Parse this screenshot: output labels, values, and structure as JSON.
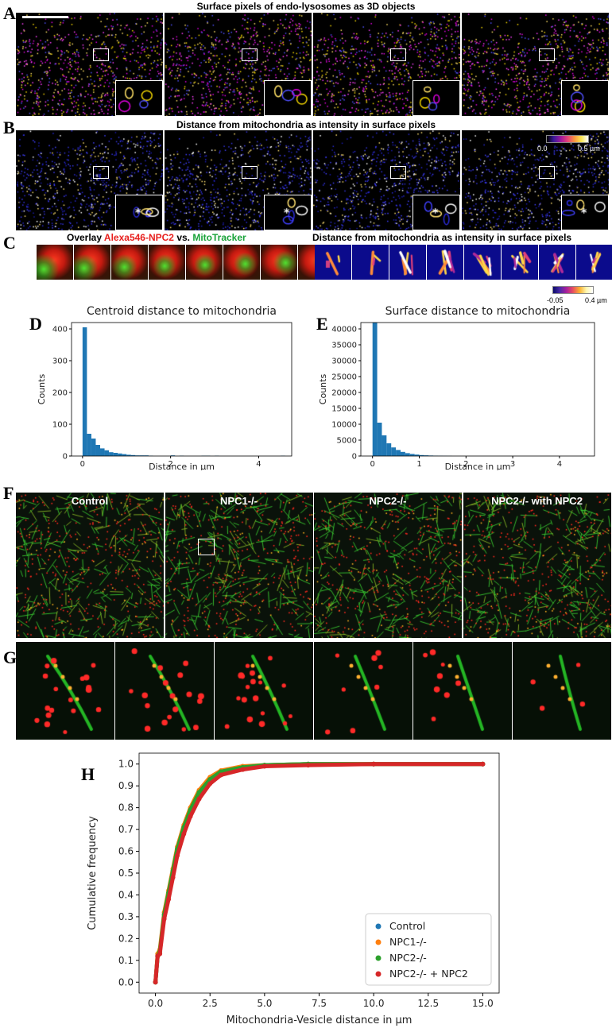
{
  "panel_A": {
    "label": "A",
    "title": "Surface pixels of endo-lysosomes as 3D objects"
  },
  "panel_B": {
    "label": "B",
    "title": "Distance from mitochondria as intensity in surface pixels",
    "colorbar": {
      "min_label": "0.0",
      "max_label": "0.5 µm"
    }
  },
  "panel_C": {
    "label": "C",
    "overlay_prefix": "Overlay ",
    "overlay_red": "Alexa546-NPC2",
    "overlay_vs": " vs. ",
    "overlay_green": "MitoTracker",
    "right_title": "Distance from mitochondria as intensity in surface pixels",
    "colorbar": {
      "min_label": "-0.05",
      "max_label": "0.4 µm"
    }
  },
  "panel_F": {
    "label": "F",
    "images": [
      "Control",
      "NPC1-/-",
      "NPC2-/-",
      "NPC2-/- with NPC2"
    ]
  },
  "panel_G": {
    "label": "G"
  },
  "chart_data": [
    {
      "panel": "D",
      "type": "bar",
      "title": "Centroid distance to mitochondria",
      "xlabel": "Distance in µm",
      "ylabel": "Counts",
      "xlim": [
        -0.25,
        4.75
      ],
      "ylim": [
        0,
        420
      ],
      "xticks": [
        0,
        2,
        4
      ],
      "yticks": [
        0,
        100,
        200,
        300,
        400
      ],
      "bin_width": 0.1,
      "bin_starts": [
        0.0,
        0.1,
        0.2,
        0.3,
        0.4,
        0.5,
        0.6,
        0.7,
        0.8,
        0.9,
        1.0,
        1.1,
        1.2,
        1.3,
        1.4,
        1.5,
        2.0,
        2.2,
        2.7,
        2.8,
        3.0,
        4.5
      ],
      "values": [
        405,
        70,
        55,
        35,
        24,
        18,
        12,
        10,
        8,
        6,
        4,
        3,
        2,
        2,
        2,
        1,
        2,
        1,
        1,
        1,
        1,
        1
      ],
      "color": "#1f77b4"
    },
    {
      "panel": "E",
      "type": "bar",
      "title": "Surface distance to mitochondria",
      "xlabel": "Distance in µm",
      "ylabel": "Counts",
      "xlim": [
        -0.25,
        4.75
      ],
      "ylim": [
        0,
        42000
      ],
      "xticks": [
        0,
        1,
        2,
        3,
        4
      ],
      "yticks": [
        0,
        5000,
        10000,
        15000,
        20000,
        25000,
        30000,
        35000,
        40000
      ],
      "bin_width": 0.1,
      "bin_starts": [
        0.0,
        0.1,
        0.2,
        0.3,
        0.4,
        0.5,
        0.6,
        0.7,
        0.8,
        0.9,
        1.0,
        1.1,
        1.2,
        1.3,
        1.4,
        1.5,
        1.6
      ],
      "values": [
        42000,
        10500,
        6500,
        4000,
        2700,
        1900,
        1300,
        900,
        650,
        450,
        300,
        220,
        160,
        120,
        90,
        60,
        40
      ],
      "color": "#1f77b4"
    },
    {
      "panel": "H",
      "type": "scatter",
      "title": "",
      "xlabel": "Mitochondria-Vesicle distance in µm",
      "ylabel": "Cumulative frequency",
      "xlim": [
        -0.75,
        15.75
      ],
      "ylim": [
        -0.05,
        1.05
      ],
      "xticks": [
        0.0,
        2.5,
        5.0,
        7.5,
        10.0,
        12.5,
        15.0
      ],
      "yticks": [
        0.0,
        0.1,
        0.2,
        0.3,
        0.4,
        0.5,
        0.6,
        0.7,
        0.8,
        0.9,
        1.0
      ],
      "legend_position": "lower-right",
      "series": [
        {
          "name": "Control",
          "color": "#1f77b4",
          "x": [
            0,
            0.1,
            0.2,
            0.4,
            0.6,
            0.8,
            1.0,
            1.3,
            1.6,
            2.0,
            2.5,
            3.0,
            4.0,
            5.0,
            7.0,
            10.0,
            15.0
          ],
          "y": [
            0.0,
            0.12,
            0.14,
            0.3,
            0.4,
            0.5,
            0.6,
            0.7,
            0.78,
            0.86,
            0.93,
            0.96,
            0.985,
            0.995,
            1.0,
            1.0,
            1.0
          ]
        },
        {
          "name": "NPC1-/-",
          "color": "#ff7f0e",
          "x": [
            0,
            0.1,
            0.2,
            0.4,
            0.6,
            0.8,
            1.0,
            1.3,
            1.6,
            2.0,
            2.5,
            3.0,
            4.0,
            5.0,
            7.0,
            10.0,
            15.0
          ],
          "y": [
            0.0,
            0.13,
            0.15,
            0.32,
            0.42,
            0.52,
            0.62,
            0.72,
            0.8,
            0.88,
            0.94,
            0.97,
            0.99,
            0.995,
            1.0,
            1.0,
            1.0
          ]
        },
        {
          "name": "NPC2-/-",
          "color": "#2ca02c",
          "x": [
            0,
            0.1,
            0.2,
            0.4,
            0.6,
            0.8,
            1.0,
            1.3,
            1.6,
            2.0,
            2.5,
            3.0,
            4.0,
            5.0,
            7.0,
            10.0,
            15.0
          ],
          "y": [
            0.0,
            0.12,
            0.14,
            0.31,
            0.41,
            0.51,
            0.61,
            0.71,
            0.79,
            0.87,
            0.93,
            0.965,
            0.985,
            0.995,
            1.0,
            1.0,
            1.0
          ]
        },
        {
          "name": "NPC2-/- + NPC2",
          "color": "#d62728",
          "x": [
            0,
            0.1,
            0.2,
            0.4,
            0.6,
            0.8,
            1.0,
            1.3,
            1.6,
            2.0,
            2.5,
            3.0,
            4.0,
            5.0,
            7.0,
            10.0,
            15.0
          ],
          "y": [
            0.0,
            0.12,
            0.13,
            0.29,
            0.38,
            0.48,
            0.58,
            0.68,
            0.76,
            0.84,
            0.91,
            0.95,
            0.975,
            0.99,
            0.995,
            1.0,
            1.0
          ]
        }
      ]
    }
  ]
}
